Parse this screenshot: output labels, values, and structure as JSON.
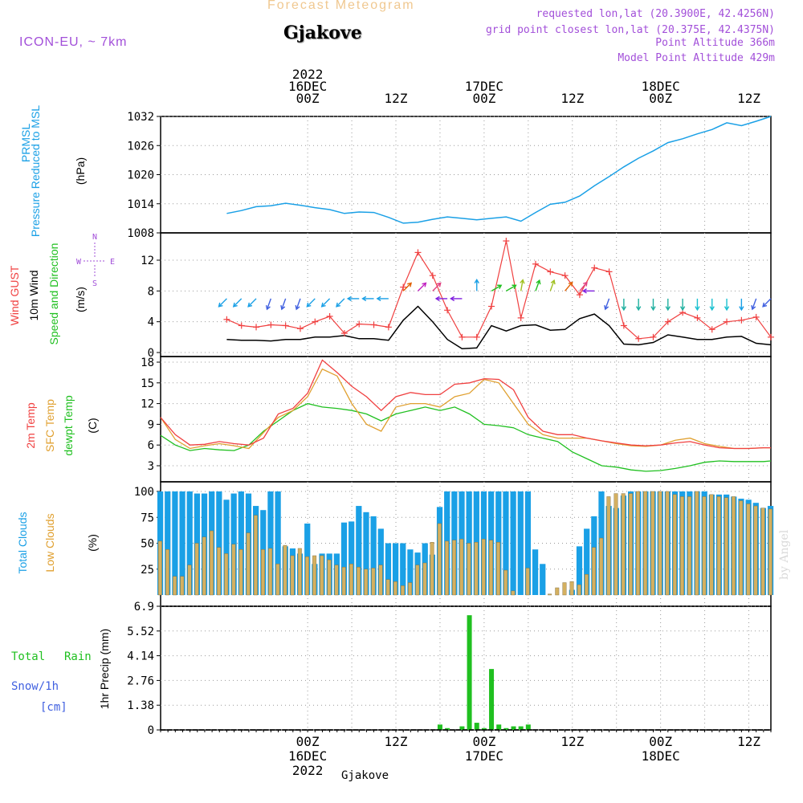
{
  "header": {
    "title": "Forecast Meteogram",
    "location": "Gjakove",
    "model": "ICON-EU, ~ 7km",
    "requested": "requested lon,lat (20.3900E, 42.4256N)",
    "gridpoint": "grid point closest lon,lat (20.375E, 42.4375N)",
    "point_alt": "Point Altitude 366m",
    "model_alt": "Model Point Altitude 429m"
  },
  "footer": {
    "location": "Gjakove"
  },
  "watermark": "by Angel",
  "colors": {
    "pressure": "#1aa0e6",
    "gust": "#f04040",
    "wind": "#000000",
    "dir": "#20c020",
    "temp2m": "#f04040",
    "sfctemp": "#e0a030",
    "dewpt": "#20c020",
    "total_clouds": "#1aa0e6",
    "low_clouds": "#d4b060",
    "rain": "#20c020",
    "snow": "#4060e0",
    "label_purple": "#a24fd9"
  },
  "panel_labels": {
    "pressure": [
      "PRMSL",
      "Pressure Reduced to MSL",
      "(hPa)"
    ],
    "wind": [
      "Wind GUST",
      "10m Wind",
      "Speed and Direction",
      "(m/s)"
    ],
    "compass": "W <--> E S<--> N",
    "temp": [
      "2m Temp",
      "SFC Temp",
      "dewpt Temp",
      "(C)"
    ],
    "clouds": [
      "Total Clouds",
      "Low Clouds",
      "(%)"
    ],
    "precip": [
      "Total",
      "Rain",
      "Snow/1h",
      "[cm]",
      "1hr Precip (mm)"
    ]
  },
  "chart_data": {
    "type": "line",
    "time_axis": {
      "start_hours": -20,
      "end_hours": 63,
      "step_hours": 1,
      "top_ticks": [
        {
          "h": 0,
          "lines": [
            "2022",
            "16DEC",
            "00Z"
          ]
        },
        {
          "h": 12,
          "lines": [
            "12Z"
          ]
        },
        {
          "h": 24,
          "lines": [
            "17DEC",
            "00Z"
          ]
        },
        {
          "h": 36,
          "lines": [
            "12Z"
          ]
        },
        {
          "h": 48,
          "lines": [
            "18DEC",
            "00Z"
          ]
        },
        {
          "h": 60,
          "lines": [
            "12Z"
          ]
        }
      ],
      "bottom_ticks": [
        {
          "h": 0,
          "lines": [
            "00Z",
            "16DEC",
            "2022"
          ]
        },
        {
          "h": 12,
          "lines": [
            "12Z"
          ]
        },
        {
          "h": 24,
          "lines": [
            "00Z",
            "17DEC"
          ]
        },
        {
          "h": 36,
          "lines": [
            "12Z"
          ]
        },
        {
          "h": 48,
          "lines": [
            "00Z",
            "18DEC"
          ]
        },
        {
          "h": 60,
          "lines": [
            "12Z"
          ]
        }
      ],
      "grid_hours": [
        0,
        6,
        12,
        18,
        24,
        30,
        36,
        42,
        48,
        54,
        60
      ]
    },
    "pressure": {
      "ylabel": "Pressure Reduced to MSL (hPa)",
      "ylim": [
        1008,
        1032
      ],
      "yticks": [
        "1032",
        "1026",
        "1020",
        "1014",
        "1008"
      ],
      "times": [
        -11,
        -9,
        -7,
        -5,
        -3,
        -1,
        1,
        3,
        5,
        7,
        9,
        11,
        13,
        15,
        17,
        19,
        21,
        23,
        25,
        27,
        29,
        31,
        33,
        35,
        37,
        39,
        41,
        43,
        45,
        47,
        49,
        51,
        53,
        55,
        57,
        59,
        61,
        63
      ],
      "values": [
        1012.0,
        1012.6,
        1013.4,
        1013.6,
        1014.1,
        1013.7,
        1013.2,
        1012.8,
        1012.0,
        1012.3,
        1012.2,
        1011.2,
        1010.0,
        1010.2,
        1010.8,
        1011.3,
        1011.0,
        1010.7,
        1011.0,
        1011.3,
        1010.4,
        1012.2,
        1013.9,
        1014.3,
        1015.6,
        1017.7,
        1019.6,
        1021.6,
        1023.4,
        1024.9,
        1026.6,
        1027.4,
        1028.4,
        1029.3,
        1030.7,
        1030.1,
        1031.0,
        1032.0
      ]
    },
    "wind": {
      "ylabel": "(m/s)",
      "ylim": [
        0,
        15
      ],
      "yticks": [
        "12",
        "8",
        "4",
        "0"
      ],
      "times": [
        -11,
        -9,
        -7,
        -5,
        -3,
        -1,
        1,
        3,
        5,
        7,
        9,
        11,
        13,
        15,
        17,
        19,
        21,
        23,
        25,
        27,
        29,
        31,
        33,
        35,
        37,
        39,
        41,
        43,
        45,
        47,
        49,
        51,
        53,
        55,
        57,
        59,
        61,
        63
      ],
      "gust": [
        4.3,
        3.5,
        3.3,
        3.6,
        3.5,
        3.1,
        4.0,
        4.7,
        2.5,
        3.7,
        3.6,
        3.3,
        8.5,
        13.0,
        10.0,
        5.5,
        2.0,
        2.0,
        6.0,
        14.5,
        4.5,
        11.5,
        10.5,
        10.0,
        7.5,
        11.0,
        10.5,
        3.5,
        1.8,
        2.0,
        4.0,
        5.2,
        4.5,
        3.0,
        4.0,
        4.2,
        4.6,
        2.0
      ],
      "speed": [
        1.7,
        1.6,
        1.6,
        1.5,
        1.7,
        1.7,
        2.0,
        2.0,
        2.2,
        1.8,
        1.8,
        1.6,
        4.2,
        6.0,
        4.0,
        1.7,
        0.5,
        0.6,
        3.5,
        2.8,
        3.5,
        3.6,
        2.9,
        3.0,
        4.4,
        5.0,
        3.5,
        1.1,
        1.0,
        1.3,
        2.3,
        2.0,
        1.7,
        1.7,
        2.0,
        2.1,
        1.2,
        1.0
      ],
      "direction_arrows": [
        {
          "h": -11,
          "v": 7,
          "c": "#1aa0e6",
          "a": 225
        },
        {
          "h": -9,
          "v": 7,
          "c": "#1aa0e6",
          "a": 225
        },
        {
          "h": -7,
          "v": 7,
          "c": "#1aa0e6",
          "a": 225
        },
        {
          "h": -5,
          "v": 7,
          "c": "#4060e0",
          "a": 200
        },
        {
          "h": -3,
          "v": 7,
          "c": "#4060e0",
          "a": 200
        },
        {
          "h": -1,
          "v": 7,
          "c": "#4060e0",
          "a": 200
        },
        {
          "h": 1,
          "v": 7,
          "c": "#1aa0e6",
          "a": 225
        },
        {
          "h": 3,
          "v": 7,
          "c": "#1aa0e6",
          "a": 225
        },
        {
          "h": 5,
          "v": 7,
          "c": "#1aa0e6",
          "a": 225
        },
        {
          "h": 7,
          "v": 7,
          "c": "#1aa0e6",
          "a": 270
        },
        {
          "h": 9,
          "v": 7,
          "c": "#1aa0e6",
          "a": 270
        },
        {
          "h": 11,
          "v": 7,
          "c": "#1aa0e6",
          "a": 270
        },
        {
          "h": 13,
          "v": 8,
          "c": "#e06000",
          "a": 45
        },
        {
          "h": 15,
          "v": 8,
          "c": "#c020c0",
          "a": 45
        },
        {
          "h": 17,
          "v": 8,
          "c": "#e04080",
          "a": 45
        },
        {
          "h": 19,
          "v": 7,
          "c": "#8020e0",
          "a": 270
        },
        {
          "h": 21,
          "v": 7,
          "c": "#8020e0",
          "a": 270
        },
        {
          "h": 23,
          "v": 8,
          "c": "#1aa0e6",
          "a": 0
        },
        {
          "h": 25,
          "v": 8,
          "c": "#20c020",
          "a": 60
        },
        {
          "h": 27,
          "v": 8,
          "c": "#20c020",
          "a": 60
        },
        {
          "h": 29,
          "v": 8,
          "c": "#a0c020",
          "a": 10
        },
        {
          "h": 31,
          "v": 8,
          "c": "#20c020",
          "a": 20
        },
        {
          "h": 33,
          "v": 8,
          "c": "#a0c020",
          "a": 20
        },
        {
          "h": 35,
          "v": 8,
          "c": "#e06000",
          "a": 40
        },
        {
          "h": 37,
          "v": 8,
          "c": "#e04080",
          "a": 40
        },
        {
          "h": 39,
          "v": 8,
          "c": "#8020e0",
          "a": 270
        },
        {
          "h": 41,
          "v": 7,
          "c": "#4060e0",
          "a": 200
        },
        {
          "h": 43,
          "v": 7,
          "c": "#20b0a0",
          "a": 180
        },
        {
          "h": 45,
          "v": 7,
          "c": "#20b0a0",
          "a": 180
        },
        {
          "h": 47,
          "v": 7,
          "c": "#20b0a0",
          "a": 180
        },
        {
          "h": 49,
          "v": 7,
          "c": "#20b0a0",
          "a": 180
        },
        {
          "h": 51,
          "v": 7,
          "c": "#20b0a0",
          "a": 180
        },
        {
          "h": 53,
          "v": 7,
          "c": "#1ac0d0",
          "a": 180
        },
        {
          "h": 55,
          "v": 7,
          "c": "#1ac0d0",
          "a": 180
        },
        {
          "h": 57,
          "v": 7,
          "c": "#1ac0d0",
          "a": 180
        },
        {
          "h": 59,
          "v": 7,
          "c": "#1aa0e6",
          "a": 180
        },
        {
          "h": 61,
          "v": 7,
          "c": "#4060e0",
          "a": 200
        },
        {
          "h": 63,
          "v": 7,
          "c": "#4060e0",
          "a": 225
        }
      ]
    },
    "temperature": {
      "ylabel": "(C)",
      "ylim": [
        1,
        18
      ],
      "yticks": [
        "18",
        "15",
        "12",
        "9",
        "6",
        "3"
      ],
      "times": [
        -20,
        -18,
        -16,
        -14,
        -12,
        -10,
        -8,
        -6,
        -4,
        -2,
        0,
        2,
        4,
        6,
        8,
        10,
        12,
        14,
        16,
        18,
        20,
        22,
        24,
        26,
        28,
        30,
        32,
        34,
        36,
        38,
        40,
        42,
        44,
        46,
        48,
        50,
        52,
        54,
        56,
        58,
        60,
        62,
        63
      ],
      "temp2m": [
        10.0,
        7.5,
        6.0,
        6.1,
        6.5,
        6.2,
        6.0,
        7.0,
        10.5,
        11.3,
        13.5,
        18.3,
        16.5,
        14.5,
        13.0,
        11.0,
        13.0,
        13.6,
        13.3,
        13.3,
        14.8,
        15.0,
        15.6,
        15.5,
        14.0,
        10.0,
        8.0,
        7.5,
        7.5,
        7.0,
        6.6,
        6.3,
        6.0,
        5.9,
        6.0,
        6.3,
        6.5,
        6.0,
        5.6,
        5.5,
        5.5,
        5.6,
        5.6
      ],
      "sfctemp": [
        10.0,
        6.8,
        5.5,
        5.9,
        6.2,
        5.9,
        5.5,
        7.8,
        10.0,
        11.0,
        13.0,
        17.0,
        16.0,
        12.0,
        9.0,
        8.0,
        11.5,
        12.0,
        12.0,
        11.5,
        13.0,
        13.5,
        15.5,
        15.0,
        12.0,
        9.0,
        7.5,
        7.0,
        7.0,
        7.0,
        6.6,
        6.2,
        5.9,
        5.8,
        6.0,
        6.7,
        7.0,
        6.2,
        5.8,
        5.5,
        5.5,
        5.6,
        5.6
      ],
      "dewpt": [
        7.4,
        6.0,
        5.2,
        5.5,
        5.3,
        5.2,
        6.0,
        8.0,
        9.5,
        11.0,
        12.0,
        11.5,
        11.3,
        11.0,
        10.5,
        9.5,
        10.5,
        11.0,
        11.5,
        11.0,
        11.5,
        10.5,
        9.0,
        8.8,
        8.5,
        7.5,
        7.0,
        6.5,
        5.0,
        4.0,
        3.0,
        2.8,
        2.4,
        2.2,
        2.3,
        2.6,
        3.0,
        3.5,
        3.7,
        3.6,
        3.6,
        3.6,
        3.7
      ]
    },
    "clouds": {
      "ylabel": "(%)",
      "ylim": [
        0,
        100
      ],
      "yticks": [
        "100",
        "75",
        "50",
        "25"
      ],
      "times": [
        -20,
        -19,
        -18,
        -17,
        -16,
        -15,
        -14,
        -13,
        -12,
        -11,
        -10,
        -9,
        -8,
        -7,
        -6,
        -5,
        -4,
        -3,
        -2,
        -1,
        0,
        1,
        2,
        3,
        4,
        5,
        6,
        7,
        8,
        9,
        10,
        11,
        12,
        13,
        14,
        15,
        16,
        17,
        18,
        19,
        20,
        21,
        22,
        23,
        24,
        25,
        26,
        27,
        28,
        29,
        30,
        31,
        32,
        33,
        34,
        35,
        36,
        37,
        38,
        39,
        40,
        41,
        42,
        43,
        44,
        45,
        46,
        47,
        48,
        49,
        50,
        51,
        52,
        53,
        54,
        55,
        56,
        57,
        58,
        59,
        60,
        61,
        62,
        63
      ],
      "total": [
        100,
        100,
        100,
        100,
        100,
        98,
        98,
        100,
        100,
        92,
        98,
        100,
        98,
        86,
        82,
        100,
        100,
        47,
        45,
        40,
        69,
        30,
        40,
        40,
        40,
        70,
        71,
        86,
        80,
        76,
        64,
        50,
        50,
        50,
        44,
        41,
        50,
        39,
        85,
        100,
        100,
        100,
        100,
        100,
        100,
        100,
        100,
        100,
        100,
        100,
        100,
        44,
        30,
        0,
        0,
        0,
        5,
        47,
        64,
        76,
        100,
        86,
        84,
        96,
        100,
        100,
        100,
        100,
        100,
        100,
        100,
        100,
        100,
        100,
        100,
        97,
        97,
        97,
        95,
        93,
        92,
        89,
        84,
        86
      ],
      "low": [
        52,
        44,
        18,
        18,
        29,
        50,
        56,
        62,
        46,
        40,
        49,
        44,
        60,
        77,
        44,
        45,
        30,
        48,
        38,
        45,
        37,
        38,
        38,
        34,
        29,
        27,
        30,
        27,
        25,
        26,
        29,
        15,
        13,
        9,
        12,
        29,
        31,
        51,
        69,
        52,
        53,
        54,
        50,
        51,
        54,
        53,
        51,
        24,
        4,
        0,
        26,
        0,
        0,
        1,
        7,
        12,
        13,
        10,
        20,
        46,
        55,
        95,
        98,
        98,
        98,
        100,
        100,
        100,
        100,
        100,
        97,
        95,
        95,
        100,
        95,
        97,
        95,
        94,
        95,
        91,
        88,
        86,
        84,
        83
      ]
    },
    "precip": {
      "ylabel": "1hr Precip (mm)",
      "ylim": [
        0,
        6.9
      ],
      "yticks": [
        "6.9",
        "5.52",
        "4.14",
        "2.76",
        "1.38",
        "0"
      ],
      "times": [
        18,
        19,
        20,
        21,
        22,
        23,
        24,
        25,
        26,
        27,
        28,
        29,
        30
      ],
      "rain": [
        0.3,
        0.1,
        0.0,
        0.2,
        6.4,
        0.4,
        0.1,
        3.4,
        0.3,
        0.1,
        0.2,
        0.2,
        0.3
      ],
      "snow": []
    }
  }
}
